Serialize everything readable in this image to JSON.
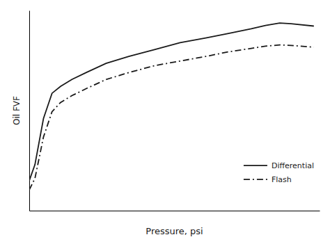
{
  "chart_data": {
    "type": "line",
    "xlabel": "Pressure, psi",
    "ylabel": "Oil FVF",
    "x": [
      0.0,
      0.02,
      0.05,
      0.08,
      0.11,
      0.15,
      0.2,
      0.27,
      0.35,
      0.44,
      0.53,
      0.62,
      0.7,
      0.78,
      0.83,
      0.88,
      0.92,
      1.0
    ],
    "series": [
      {
        "name": "Differential",
        "color": "#1a1a1a",
        "line_style": "solid",
        "values": [
          0.28,
          0.35,
          0.55,
          0.66,
          0.69,
          0.72,
          0.75,
          0.79,
          0.82,
          0.85,
          0.88,
          0.9,
          0.92,
          0.94,
          0.955,
          0.965,
          0.962,
          0.952
        ]
      },
      {
        "name": "Flash",
        "color": "#1a1a1a",
        "line_style": "dash-dot",
        "values": [
          0.24,
          0.29,
          0.47,
          0.58,
          0.62,
          0.65,
          0.68,
          0.72,
          0.75,
          0.78,
          0.8,
          0.82,
          0.84,
          0.855,
          0.865,
          0.87,
          0.868,
          0.86
        ]
      }
    ],
    "xlim": [
      0.0,
      1.02
    ],
    "ylim": [
      0.15,
      1.02
    ],
    "tick_labels": false,
    "grid": false,
    "legend": "lower right"
  }
}
